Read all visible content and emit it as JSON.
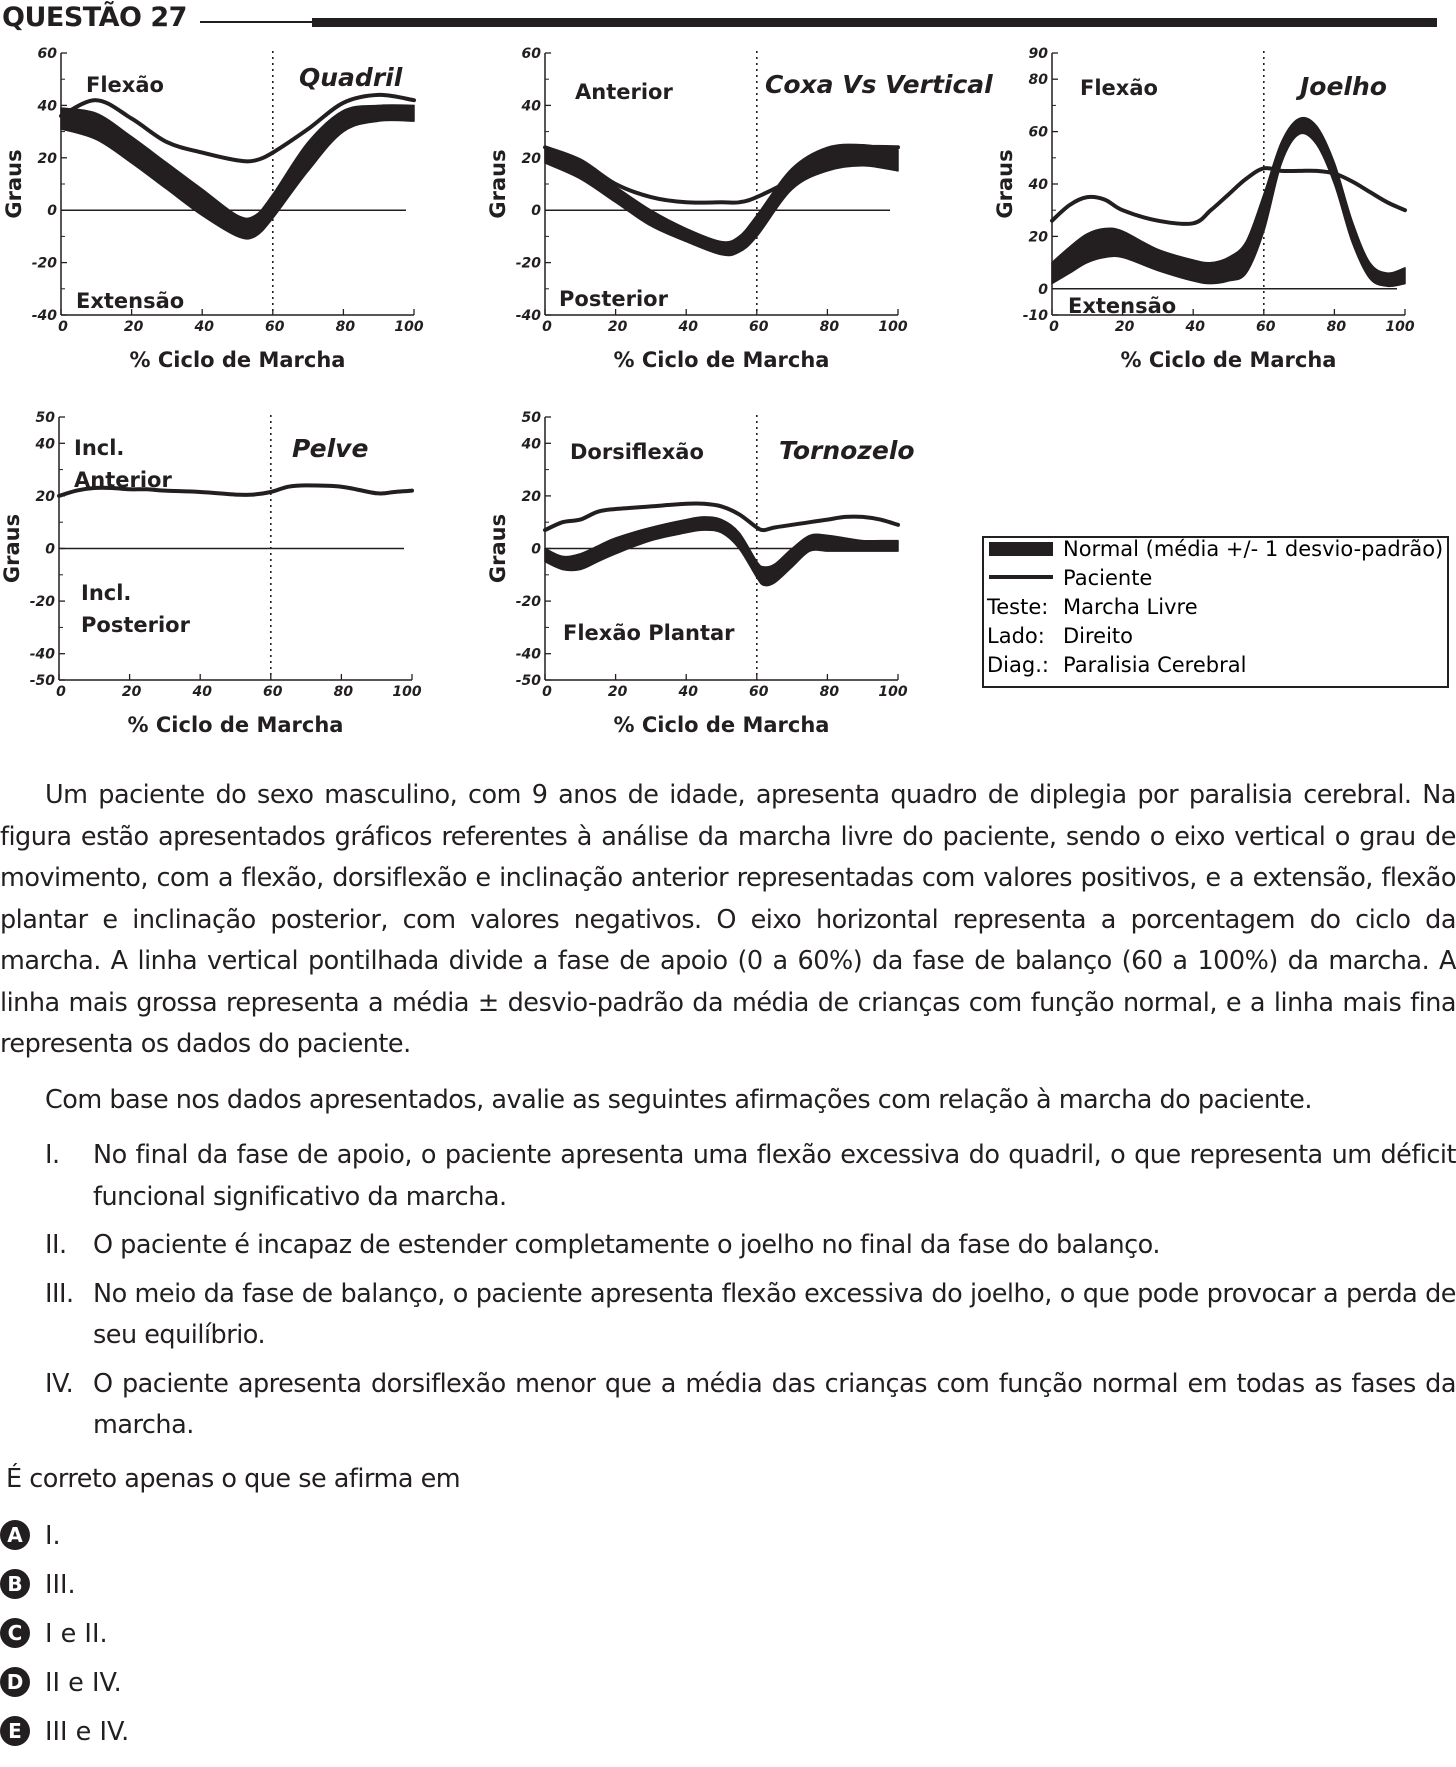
{
  "header": {
    "title": "QUESTÃO 27"
  },
  "common": {
    "xlabel": "% Ciclo de Marcha",
    "ylabel": "Graus"
  },
  "chart_data": [
    {
      "type": "line",
      "title": "Quadril",
      "region_top": "Flexão",
      "region_bottom": "Extensão",
      "xlabel": "% Ciclo de Marcha",
      "ylabel": "Graus",
      "xlim": [
        0,
        100
      ],
      "ylim": [
        -40,
        60
      ],
      "xticks": [
        0,
        20,
        40,
        60,
        80,
        100
      ],
      "yticks": [
        -40,
        -20,
        0,
        20,
        40,
        60
      ],
      "divider_x": 60,
      "x": [
        0,
        10,
        20,
        30,
        40,
        50,
        55,
        60,
        70,
        80,
        90,
        100
      ],
      "series": [
        {
          "name": "Normal (média +/- 1 desvio-padrão)",
          "lower": [
            31,
            27,
            18,
            8,
            -2,
            -10,
            -10,
            -3,
            15,
            30,
            34,
            34
          ],
          "upper": [
            39,
            37,
            28,
            18,
            8,
            -2,
            -2,
            6,
            26,
            38,
            40,
            40
          ]
        },
        {
          "name": "Paciente",
          "values": [
            36,
            42,
            35,
            26,
            22,
            19,
            19,
            22,
            31,
            41,
            44,
            42
          ]
        }
      ]
    },
    {
      "type": "line",
      "title": "Coxa Vs Vertical",
      "region_top": "Anterior",
      "region_bottom": "Posterior",
      "xlabel": "% Ciclo de Marcha",
      "ylabel": "Graus",
      "xlim": [
        0,
        100
      ],
      "ylim": [
        -40,
        60
      ],
      "xticks": [
        0,
        20,
        40,
        60,
        80,
        100
      ],
      "yticks": [
        -40,
        -20,
        0,
        20,
        40,
        60
      ],
      "divider_x": 60,
      "x": [
        0,
        10,
        20,
        30,
        40,
        50,
        55,
        60,
        70,
        80,
        90,
        100
      ],
      "series": [
        {
          "name": "Normal (média +/- 1 desvio-padrão)",
          "lower": [
            18,
            12,
            3,
            -6,
            -12,
            -17,
            -16,
            -10,
            8,
            15,
            17,
            15
          ],
          "upper": [
            24,
            18,
            9,
            0,
            -7,
            -12,
            -10,
            -2,
            16,
            24,
            25,
            23
          ]
        },
        {
          "name": "Paciente",
          "values": [
            24,
            19,
            10,
            5,
            3,
            3,
            3,
            5,
            12,
            22,
            24,
            24
          ]
        }
      ]
    },
    {
      "type": "line",
      "title": "Joelho",
      "region_top": "Flexão",
      "region_bottom": "Extensão",
      "xlabel": "% Ciclo de Marcha",
      "ylabel": "Graus",
      "xlim": [
        0,
        100
      ],
      "ylim": [
        -10,
        90
      ],
      "xticks": [
        0,
        20,
        40,
        60,
        80,
        100
      ],
      "yticks": [
        -10,
        0,
        20,
        40,
        60,
        80,
        90
      ],
      "divider_x": 60,
      "x": [
        0,
        5,
        10,
        15,
        20,
        30,
        40,
        45,
        50,
        55,
        60,
        65,
        70,
        75,
        80,
        85,
        90,
        95,
        100
      ],
      "series": [
        {
          "name": "Normal (média +/- 1 desvio-padrão)",
          "lower": [
            2,
            6,
            10,
            12,
            12,
            7,
            3,
            2,
            3,
            6,
            22,
            48,
            59,
            55,
            40,
            18,
            4,
            1,
            2
          ],
          "upper": [
            10,
            16,
            21,
            23,
            22,
            15,
            11,
            10,
            12,
            18,
            36,
            56,
            65,
            62,
            48,
            26,
            10,
            6,
            8
          ]
        },
        {
          "name": "Paciente",
          "values": [
            26,
            32,
            35,
            34,
            30,
            26,
            25,
            30,
            36,
            42,
            46,
            45,
            45,
            45,
            44,
            41,
            37,
            33,
            30
          ]
        }
      ]
    },
    {
      "type": "line",
      "title": "Pelve",
      "region_top": "Incl. Anterior",
      "region_bottom": "Incl. Posterior",
      "xlabel": "% Ciclo de Marcha",
      "ylabel": "Graus",
      "xlim": [
        0,
        100
      ],
      "ylim": [
        -50,
        50
      ],
      "xticks": [
        0,
        20,
        40,
        60,
        80,
        100
      ],
      "yticks": [
        -50,
        -40,
        -20,
        0,
        20,
        40,
        50
      ],
      "divider_x": 60,
      "x": [
        0,
        5,
        10,
        15,
        20,
        25,
        30,
        40,
        50,
        55,
        60,
        65,
        70,
        80,
        90,
        95,
        100
      ],
      "series": [
        {
          "name": "Paciente",
          "values": [
            20,
            22,
            23,
            23,
            22.5,
            22.5,
            22,
            21.5,
            20.5,
            20.5,
            21.5,
            23.5,
            24,
            23.5,
            21,
            21.5,
            22
          ]
        }
      ]
    },
    {
      "type": "line",
      "title": "Tornozelo",
      "region_top": "Dorsiflexão",
      "region_bottom": "Flexão Plantar",
      "xlabel": "% Ciclo de Marcha",
      "ylabel": "Graus",
      "xlim": [
        0,
        100
      ],
      "ylim": [
        -50,
        50
      ],
      "xticks": [
        0,
        20,
        40,
        60,
        80,
        100
      ],
      "yticks": [
        -50,
        -40,
        -20,
        0,
        20,
        40,
        50
      ],
      "divider_x": 60,
      "x": [
        0,
        5,
        10,
        15,
        20,
        30,
        40,
        45,
        50,
        55,
        60,
        62,
        65,
        70,
        75,
        80,
        85,
        90,
        95,
        100
      ],
      "series": [
        {
          "name": "Normal (média +/- 1 desvio-padrão)",
          "lower": [
            -5,
            -8,
            -8,
            -5,
            -2,
            3,
            6,
            7,
            6,
            0,
            -11,
            -14,
            -13,
            -7,
            -1,
            -1,
            -1,
            -1,
            -1,
            -1
          ],
          "upper": [
            0,
            -3,
            -2,
            1,
            4,
            8,
            11,
            12,
            11,
            6,
            -5,
            -7,
            -6,
            0,
            5,
            5,
            4,
            3,
            3,
            3
          ]
        },
        {
          "name": "Paciente",
          "values": [
            7,
            10,
            11,
            14,
            15,
            16,
            17,
            17,
            16,
            13,
            8,
            7,
            8,
            9,
            10,
            11,
            12,
            12,
            11,
            9
          ]
        }
      ]
    }
  ],
  "legend": {
    "normal": "Normal (média +/- 1 desvio-padrão)",
    "paciente": "Paciente",
    "rows": [
      {
        "label": "Teste:",
        "value": "Marcha Livre"
      },
      {
        "label": "Lado:",
        "value": "Direito"
      },
      {
        "label": "Diag.:",
        "value": "Paralisia Cerebral"
      }
    ]
  },
  "body": {
    "paragraph1": "Um paciente do sexo masculino, com 9 anos de idade, apresenta quadro de diplegia por paralisia cerebral. Na figura estão apresentados gráficos referentes à análise da marcha livre do paciente, sendo o eixo vertical o grau de movimento, com a flexão, dorsiflexão e inclinação anterior representadas com valores positivos, e a extensão, flexão plantar e inclinação posterior, com valores negativos. O eixo horizontal representa a porcentagem do ciclo da marcha. A linha vertical pontilhada divide a fase de apoio (0 a 60%) da fase de balanço (60 a 100%) da marcha. A linha mais grossa representa a média ± desvio-padrão da média de crianças com função normal, e a linha mais fina representa os dados do paciente.",
    "paragraph2": "Com base nos dados apresentados, avalie as seguintes afirmações com relação à marcha do paciente.",
    "items": [
      {
        "num": "I.",
        "text": "No final da fase de apoio, o paciente apresenta uma flexão excessiva do quadril, o que representa um déficit funcional significativo da marcha."
      },
      {
        "num": "II.",
        "text": "O paciente é incapaz de estender completamente o joelho no final da fase do balanço."
      },
      {
        "num": "III.",
        "text": "No meio da fase de balanço, o paciente apresenta flexão excessiva do joelho, o que pode provocar a perda de seu equilíbrio."
      },
      {
        "num": "IV.",
        "text": "O paciente apresenta dorsiflexão menor que a média das crianças com função normal em todas as fases da marcha."
      }
    ],
    "question": "É correto apenas o que se afirma em"
  },
  "options": [
    {
      "letter": "A",
      "text": "I."
    },
    {
      "letter": "B",
      "text": "III."
    },
    {
      "letter": "C",
      "text": "I e II."
    },
    {
      "letter": "D",
      "text": "II e IV."
    },
    {
      "letter": "E",
      "text": "III e IV."
    }
  ]
}
